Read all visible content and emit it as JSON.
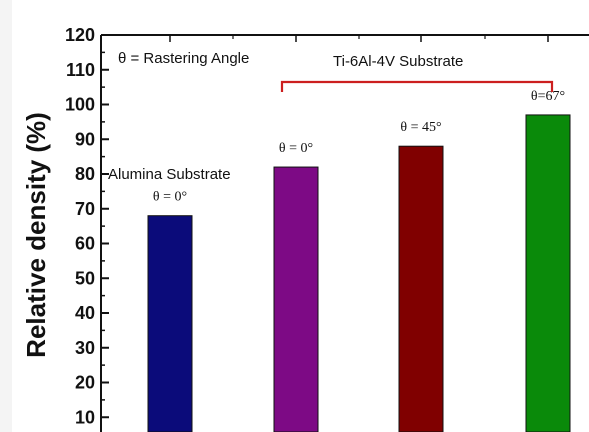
{
  "chart_data": {
    "type": "bar",
    "ylabel": "Relative density (%)",
    "ylim": [
      0,
      120
    ],
    "yticks": [
      "120",
      "110",
      "100",
      "90",
      "80",
      "70",
      "60",
      "50",
      "40",
      "30",
      "20",
      "10"
    ],
    "series": [
      {
        "values": [
          68,
          82,
          88,
          97
        ],
        "colors": [
          "#0b0b7a",
          "#7d0a85",
          "#800000",
          "#0a8a0a"
        ]
      }
    ],
    "bar_labels": [
      "θ = 0°",
      "θ = 0°",
      "θ = 45°",
      "θ=67°"
    ],
    "annotations": {
      "legend_note": "θ = Rastering Angle",
      "group_label": "Ti-6Al-4V Substrate",
      "alumina_label": "Alumina Substrate"
    },
    "grid": false,
    "bracket_color": "#cc1f1f"
  }
}
